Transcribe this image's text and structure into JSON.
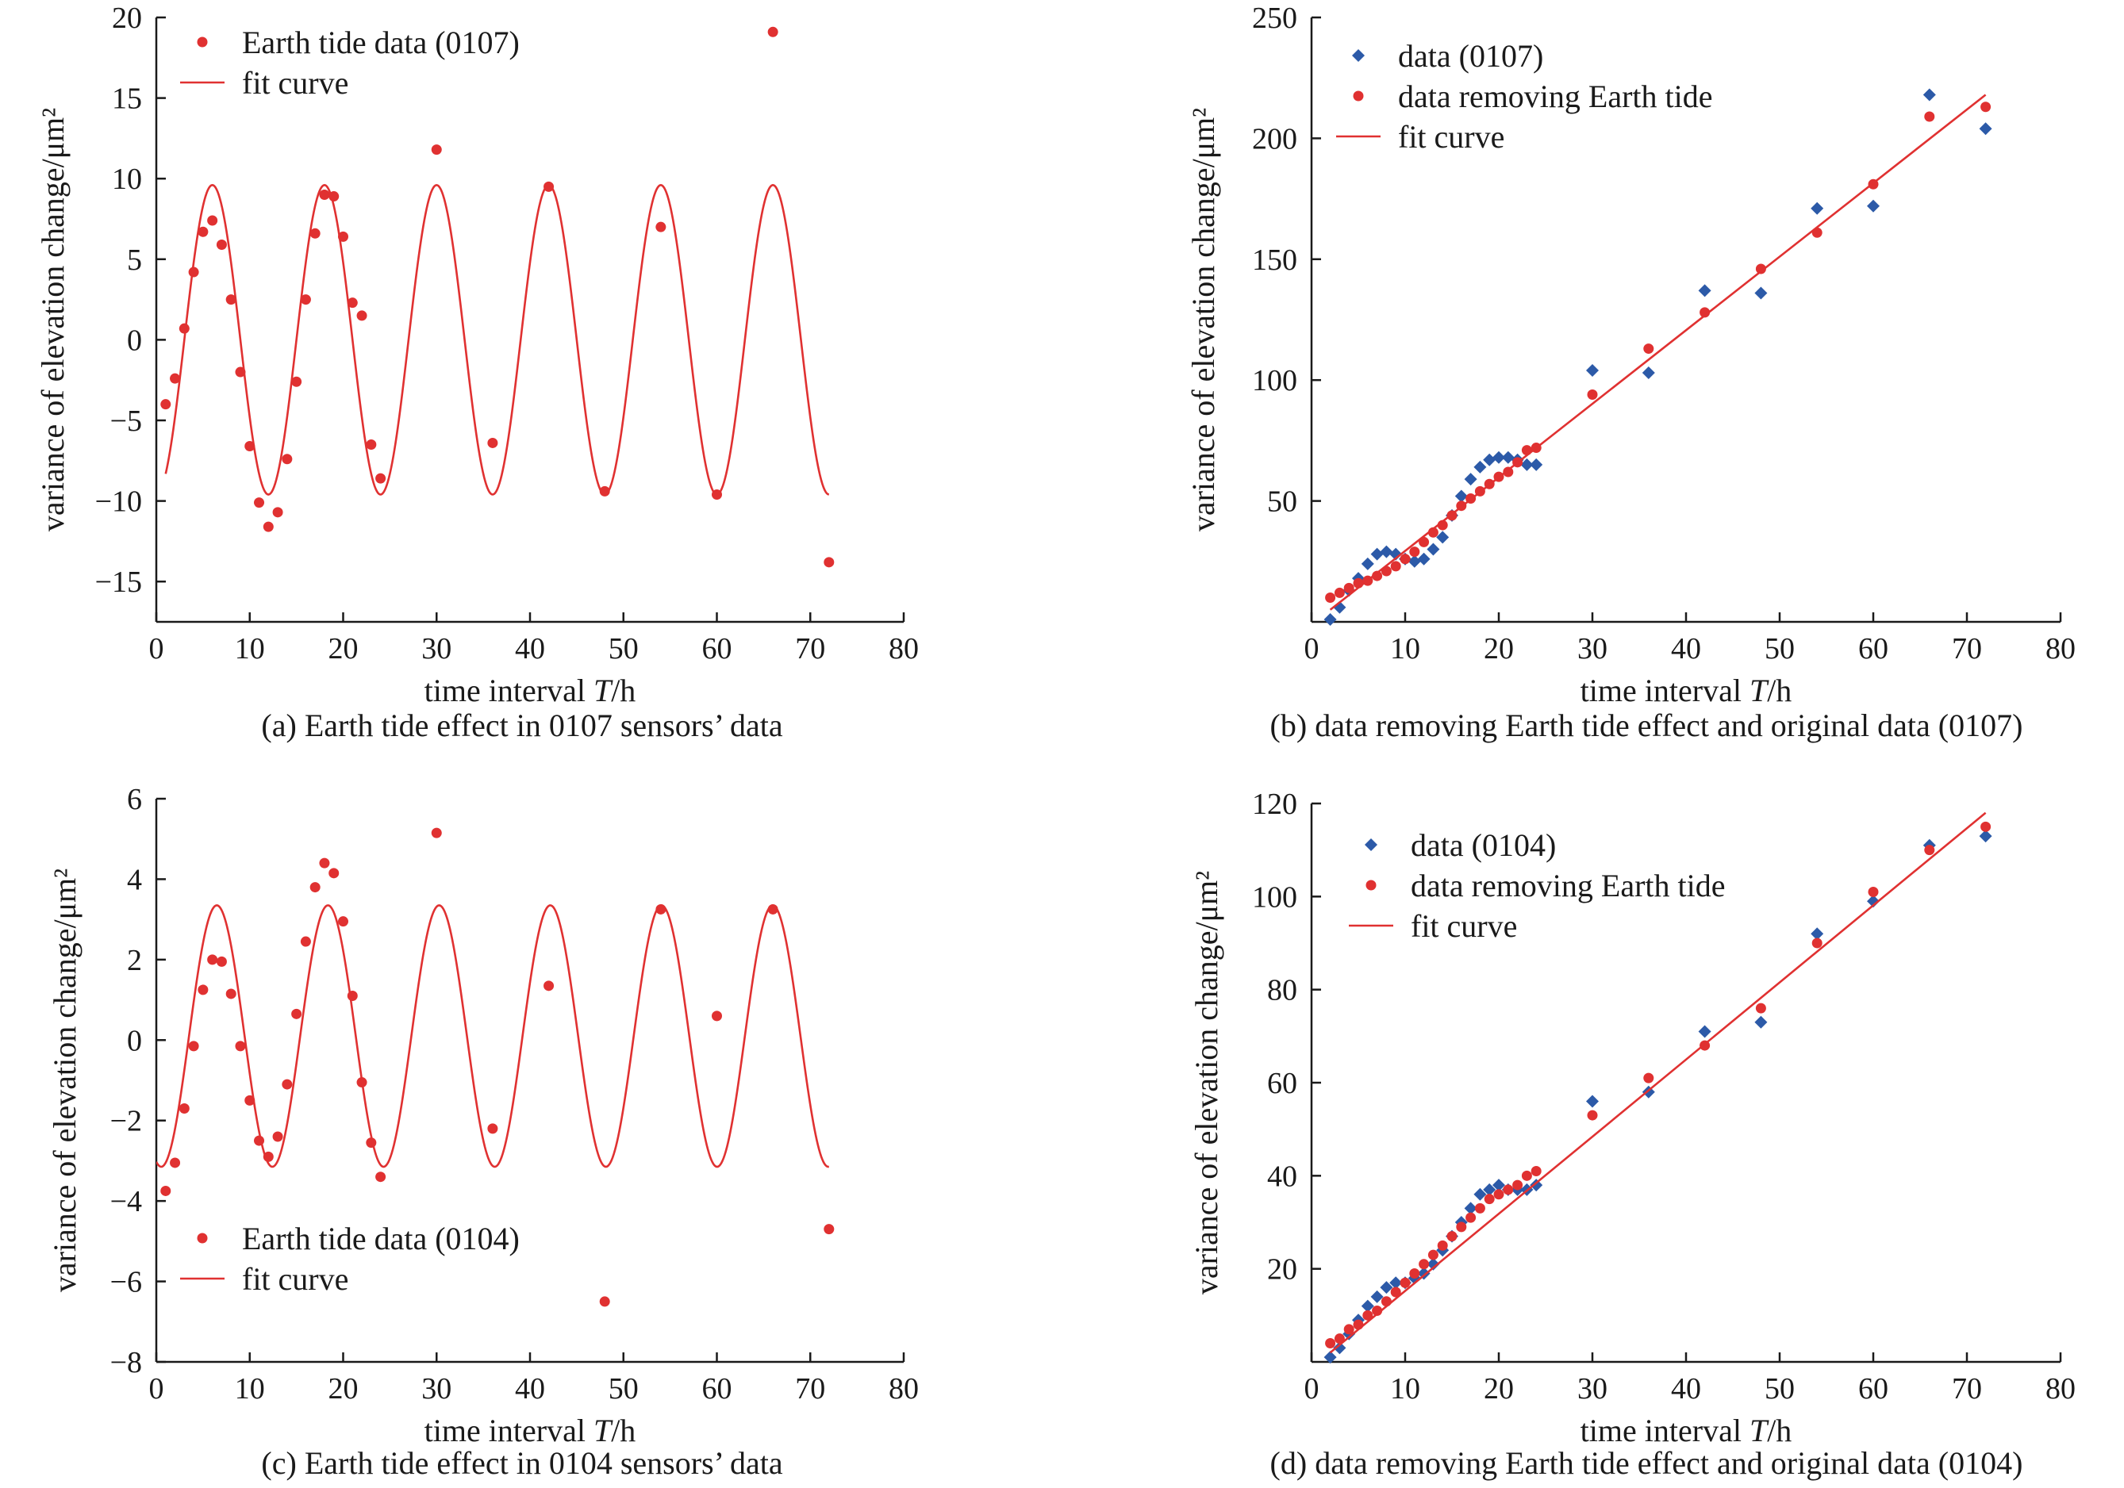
{
  "colors": {
    "red": "#e03131",
    "blue": "#2c5aa8",
    "axis": "#1a1a1a"
  },
  "chart_data": [
    {
      "type": "scatter",
      "caption": "(a) Earth tide effect in 0107 sensors’ data",
      "xlabel": "time interval ",
      "xlabel_italic": "T",
      "xlabel_unit": "/h",
      "ylabel": "variance of elevation change/μm²",
      "xlim": [
        0,
        80
      ],
      "ylim": [
        -17.5,
        20
      ],
      "xticks": [
        0,
        10,
        20,
        30,
        40,
        50,
        60,
        70,
        80
      ],
      "yticks": [
        -15,
        -10,
        -5,
        0,
        5,
        10,
        15,
        20
      ],
      "ytick_labels": [
        "−15",
        "−10",
        "−5",
        "0",
        "5",
        "10",
        "15",
        "20"
      ],
      "legend_position": "top-left",
      "series": [
        {
          "name": "Earth tide data (0107)",
          "kind": "dots",
          "color": "#e03131",
          "x": [
            1,
            2,
            3,
            4,
            5,
            6,
            7,
            8,
            9,
            10,
            11,
            12,
            13,
            14,
            15,
            16,
            17,
            18,
            19,
            20,
            21,
            22,
            23,
            24,
            30,
            36,
            42,
            48,
            54,
            60,
            66,
            72
          ],
          "y": [
            -4,
            -2.4,
            0.7,
            4.2,
            6.7,
            7.4,
            5.9,
            2.5,
            -2,
            -6.6,
            -10.1,
            -11.6,
            -10.7,
            -7.4,
            -2.6,
            2.5,
            6.6,
            9.0,
            8.9,
            6.4,
            2.3,
            1.5,
            -6.5,
            -8.6,
            11.8,
            -6.4,
            9.5,
            -9.4,
            7.0,
            -9.6,
            19.1,
            -13.8
          ]
        },
        {
          "name": "fit curve",
          "kind": "curve",
          "color": "#e03131",
          "fit": {
            "amplitude": 9.6,
            "period_h": 12.0,
            "phase_h": 3.0,
            "offset": 0,
            "x_range": [
              1,
              72
            ]
          }
        }
      ]
    },
    {
      "type": "scatter",
      "caption": "(b) data removing Earth tide effect and original data (0107)",
      "xlabel": "time interval ",
      "xlabel_italic": "T",
      "xlabel_unit": "/h",
      "ylabel": "variance of elevation change/μm²",
      "xlim": [
        0,
        80
      ],
      "ylim": [
        0,
        250
      ],
      "xticks": [
        0,
        10,
        20,
        30,
        40,
        50,
        60,
        70,
        80
      ],
      "yticks": [
        50,
        100,
        150,
        200,
        250
      ],
      "ytick_labels": [
        "50",
        "100",
        "150",
        "200",
        "250"
      ],
      "legend_position": "top-left",
      "series": [
        {
          "name": "data (0107)",
          "kind": "diamonds",
          "color": "#2c5aa8",
          "x": [
            2,
            3,
            4,
            5,
            6,
            7,
            8,
            9,
            10,
            11,
            12,
            13,
            14,
            15,
            16,
            17,
            18,
            19,
            20,
            21,
            22,
            23,
            24,
            30,
            36,
            42,
            48,
            54,
            60,
            66,
            72
          ],
          "y": [
            1,
            6,
            13,
            18,
            24,
            28,
            29,
            28,
            26,
            25,
            26,
            30,
            35,
            44,
            52,
            59,
            64,
            67,
            68,
            68,
            67,
            65,
            65,
            104,
            103,
            137,
            136,
            171,
            172,
            218,
            204
          ]
        },
        {
          "name": "data removing Earth tide",
          "kind": "dots",
          "color": "#e03131",
          "x": [
            2,
            3,
            4,
            5,
            6,
            7,
            8,
            9,
            10,
            11,
            12,
            13,
            14,
            15,
            16,
            17,
            18,
            19,
            20,
            21,
            22,
            23,
            24,
            30,
            36,
            42,
            48,
            54,
            60,
            66,
            72
          ],
          "y": [
            10,
            12,
            14,
            16,
            17,
            19,
            21,
            23,
            26,
            29,
            33,
            37,
            40,
            44,
            48,
            51,
            54,
            57,
            60,
            62,
            66,
            71,
            72,
            94,
            113,
            128,
            146,
            161,
            181,
            209,
            213
          ]
        },
        {
          "name": "fit curve",
          "kind": "line",
          "color": "#e03131",
          "line": {
            "x": [
              2,
              72
            ],
            "y": [
              5,
              218
            ]
          }
        }
      ]
    },
    {
      "type": "scatter",
      "caption": "(c) Earth tide effect in 0104 sensors’ data",
      "xlabel": "time interval ",
      "xlabel_italic": "T",
      "xlabel_unit": "/h",
      "ylabel": "variance of elevation change/μm²",
      "xlim": [
        0,
        80
      ],
      "ylim": [
        -8,
        6
      ],
      "xticks": [
        0,
        10,
        20,
        30,
        40,
        50,
        60,
        70,
        80
      ],
      "yticks": [
        -8,
        -6,
        -4,
        -2,
        0,
        2,
        4,
        6
      ],
      "ytick_labels": [
        "−8",
        "−6",
        "−4",
        "−2",
        "0",
        "2",
        "4",
        "6"
      ],
      "legend_position": "bottom-left",
      "series": [
        {
          "name": "Earth tide data (0104)",
          "kind": "dots",
          "color": "#e03131",
          "x": [
            1,
            2,
            3,
            4,
            5,
            6,
            7,
            8,
            9,
            10,
            11,
            12,
            13,
            14,
            15,
            16,
            17,
            18,
            19,
            20,
            21,
            22,
            23,
            24,
            30,
            36,
            42,
            48,
            54,
            60,
            66,
            72
          ],
          "y": [
            -3.75,
            -3.05,
            -1.7,
            -0.15,
            1.25,
            2.0,
            1.95,
            1.15,
            -0.15,
            -1.5,
            -2.5,
            -2.9,
            -2.4,
            -1.1,
            0.65,
            2.45,
            3.8,
            4.4,
            4.15,
            2.95,
            1.1,
            -1.05,
            -2.55,
            -3.4,
            5.15,
            -2.2,
            1.35,
            -6.5,
            3.25,
            0.6,
            3.25,
            -4.7
          ]
        },
        {
          "name": "fit curve",
          "kind": "curve",
          "color": "#e03131",
          "fit": {
            "amplitude": 3.25,
            "period_h": 11.9,
            "phase_h": 3.5,
            "offset": 0.1,
            "x_range": [
              0,
              72
            ]
          }
        }
      ]
    },
    {
      "type": "scatter",
      "caption": "(d) data removing Earth tide effect and original data (0104)",
      "xlabel": "time interval ",
      "xlabel_italic": "T",
      "xlabel_unit": "/h",
      "ylabel": "variance of elevation change/μm²",
      "xlim": [
        0,
        80
      ],
      "ylim": [
        0,
        120
      ],
      "xticks": [
        0,
        10,
        20,
        30,
        40,
        50,
        60,
        70,
        80
      ],
      "yticks": [
        20,
        40,
        60,
        80,
        100,
        120
      ],
      "ytick_labels": [
        "20",
        "40",
        "60",
        "80",
        "100",
        "120"
      ],
      "legend_position": "top-left",
      "series": [
        {
          "name": "data (0104)",
          "kind": "diamonds",
          "color": "#2c5aa8",
          "x": [
            2,
            3,
            4,
            5,
            6,
            7,
            8,
            9,
            10,
            11,
            12,
            13,
            14,
            15,
            16,
            17,
            18,
            19,
            20,
            21,
            22,
            23,
            24,
            30,
            36,
            42,
            48,
            54,
            60,
            66,
            72
          ],
          "y": [
            1,
            3,
            6,
            9,
            12,
            14,
            16,
            17,
            17,
            18,
            19,
            21,
            24,
            27,
            30,
            33,
            36,
            37,
            38,
            37,
            37,
            37,
            38,
            56,
            58,
            71,
            73,
            92,
            99,
            111,
            113
          ]
        },
        {
          "name": "data removing Earth tide",
          "kind": "dots",
          "color": "#e03131",
          "x": [
            2,
            3,
            4,
            5,
            6,
            7,
            8,
            9,
            10,
            11,
            12,
            13,
            14,
            15,
            16,
            17,
            18,
            19,
            20,
            21,
            22,
            23,
            24,
            30,
            36,
            42,
            48,
            54,
            60,
            66,
            72
          ],
          "y": [
            4,
            5,
            7,
            8,
            10,
            11,
            13,
            15,
            17,
            19,
            21,
            23,
            25,
            27,
            29,
            31,
            33,
            35,
            36,
            37,
            38,
            40,
            41,
            53,
            61,
            68,
            76,
            90,
            101,
            110,
            115
          ]
        },
        {
          "name": "fit curve",
          "kind": "line",
          "color": "#e03131",
          "line": {
            "x": [
              2,
              72
            ],
            "y": [
              2,
              118
            ]
          }
        }
      ]
    }
  ]
}
